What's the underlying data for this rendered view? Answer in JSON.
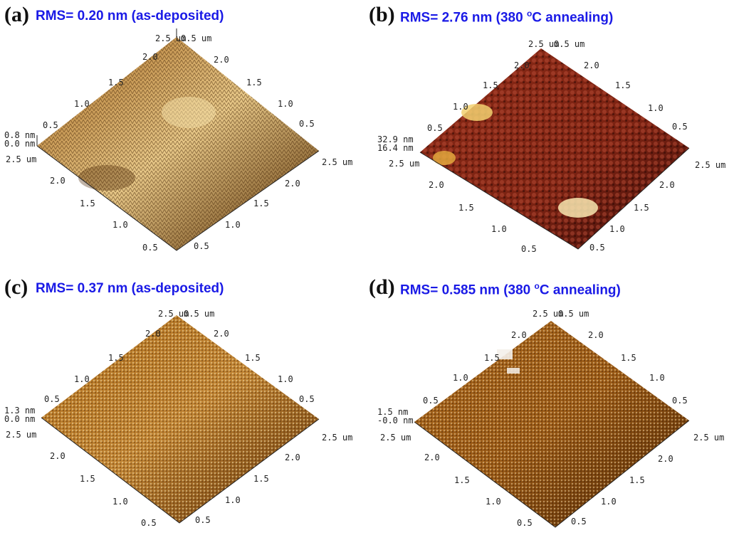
{
  "panels": [
    {
      "letter": "(a)",
      "caption": "RMS= 0.20 nm (as-deposited)",
      "z_max": "0.8 nm",
      "z_min": "0.0 nm",
      "colors": {
        "dark": "#5a3208",
        "mid": "#a86a22",
        "light": "#e8c888"
      }
    },
    {
      "letter": "(b)",
      "caption_pre": "RMS= 2.76 nm (380 ",
      "caption_sup": "o",
      "caption_post": "C annealing)",
      "z_max": "32.9 nm",
      "z_min": "16.4 nm",
      "colors": {
        "dark": "#3a0c08",
        "mid": "#8a2a16",
        "light": "#f2d070"
      }
    },
    {
      "letter": "(c)",
      "caption": "RMS= 0.37 nm (as-deposited)",
      "z_max": "1.3 nm",
      "z_min": "0.0 nm",
      "colors": {
        "dark": "#5e3006",
        "mid": "#b0701e",
        "light": "#f0d7a0"
      }
    },
    {
      "letter": "(d)",
      "caption_pre": "RMS= 0.585 nm (380 ",
      "caption_sup": "o",
      "caption_post": "C annealing)",
      "z_max": "1.5 nm",
      "z_min": "-0.0 nm",
      "colors": {
        "dark": "#4e2604",
        "mid": "#a6651c",
        "light": "#eed09c"
      }
    }
  ],
  "axis": {
    "corner_top": "2.5 um",
    "corner_top_right_pair": "0.5 um",
    "right_end": "2.5 um",
    "left_end": "2.5 um",
    "ticks_upper_left": [
      "2.0",
      "1.5",
      "1.0",
      "0.5"
    ],
    "ticks_upper_right": [
      "2.0",
      "1.5",
      "1.0",
      "0.5"
    ],
    "ticks_lower_left": [
      "2.0",
      "1.5",
      "1.0",
      "0.5"
    ],
    "ticks_lower_right": [
      "2.0",
      "1.5",
      "1.0",
      "0.5"
    ]
  }
}
